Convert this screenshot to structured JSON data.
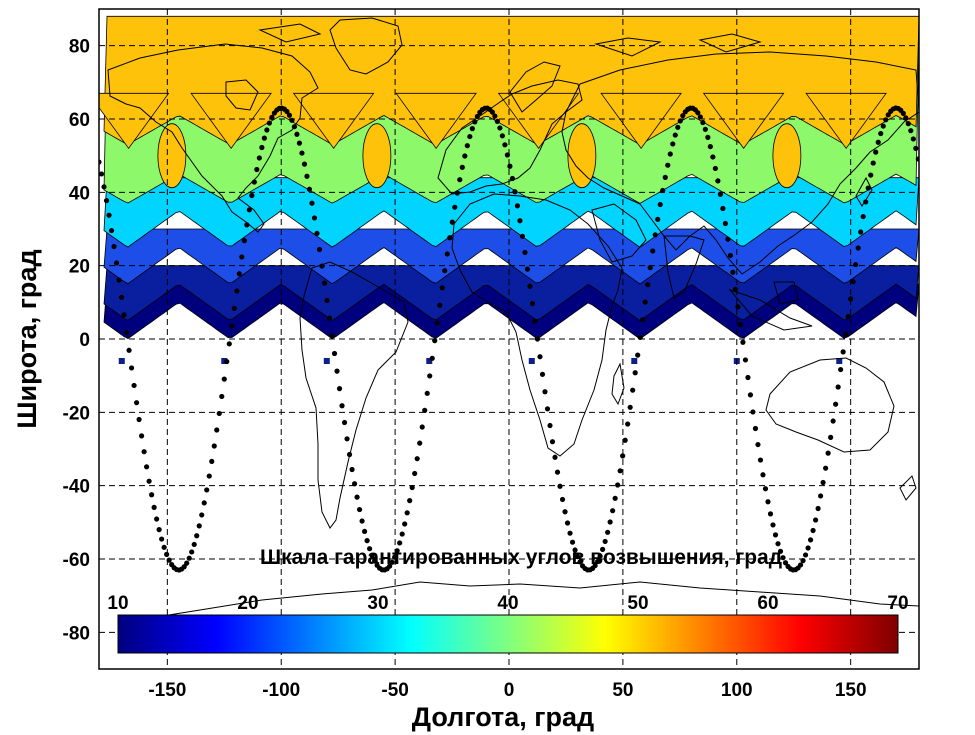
{
  "chart_data": {
    "type": "heatmap",
    "xlabel": "Долгота, град",
    "ylabel": "Широта, град",
    "xlim": [
      -180,
      180
    ],
    "ylim": [
      -90,
      90
    ],
    "x_ticks": [
      -150,
      -100,
      -50,
      0,
      50,
      100,
      150
    ],
    "y_ticks": [
      80,
      60,
      40,
      20,
      0,
      -20,
      -40,
      -60,
      -80
    ],
    "grid": "dashed",
    "colorbar": {
      "title": "Шкала гарантированных углов возвышения, град",
      "range": [
        10,
        70
      ],
      "ticks": [
        10,
        20,
        30,
        40,
        50,
        60,
        70
      ],
      "colormap": "jet"
    },
    "coverage_bands": [
      {
        "elevation_deg": 10,
        "color": "#00007f",
        "lat_range": [
          0,
          15
        ]
      },
      {
        "elevation_deg": 15,
        "color": "#0a1fa0",
        "lat_range": [
          5,
          20
        ]
      },
      {
        "elevation_deg": 20,
        "color": "#1d4fe8",
        "lat_range": [
          15,
          30
        ]
      },
      {
        "elevation_deg": 30,
        "color": "#00d4ff",
        "lat_range": [
          25,
          44
        ]
      },
      {
        "elevation_deg": 40,
        "color": "#8cf86a",
        "lat_range": [
          36,
          80
        ]
      },
      {
        "elevation_deg": 50,
        "color": "#ffc20a",
        "lat_range": [
          52,
          88
        ]
      }
    ],
    "ground_track": {
      "ascending_node_longitudes": [
        -100,
        -10,
        80,
        170
      ],
      "max_latitude": 63,
      "min_latitude": -63
    }
  }
}
